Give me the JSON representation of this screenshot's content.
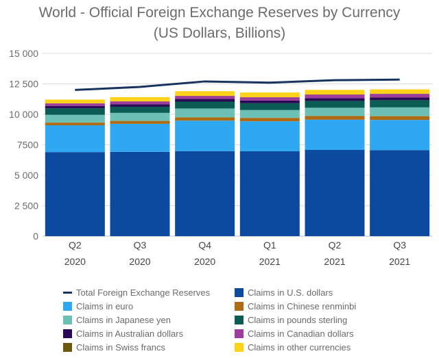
{
  "chart_data": {
    "type": "bar",
    "stacked": true,
    "title_line1": "World - Official Foreign Exchange Reserves by Currency",
    "title_line2": "(US Dollars, Billions)",
    "xlabel": "",
    "ylabel": "",
    "ylim": [
      0,
      15000
    ],
    "yticks": [
      0,
      2500,
      5000,
      7500,
      10000,
      12500,
      15000
    ],
    "ytick_labels": [
      "0",
      "2 500",
      "5 000",
      "7500",
      "10 000",
      "12 500",
      "15 000"
    ],
    "categories": [
      {
        "quarter": "Q2",
        "year": "2020"
      },
      {
        "quarter": "Q3",
        "year": "2020"
      },
      {
        "quarter": "Q4",
        "year": "2020"
      },
      {
        "quarter": "Q1",
        "year": "2021"
      },
      {
        "quarter": "Q2",
        "year": "2021"
      },
      {
        "quarter": "Q3",
        "year": "2021"
      }
    ],
    "series": [
      {
        "name": "Claims in U.S. dollars",
        "color": "#0b4a9e",
        "values": [
          6900,
          6920,
          6980,
          6970,
          7080,
          7060
        ]
      },
      {
        "name": "Claims in euro",
        "color": "#2ea8f0",
        "values": [
          2200,
          2300,
          2500,
          2460,
          2480,
          2480
        ]
      },
      {
        "name": "Claims in Chinese renminbi",
        "color": "#b06a14",
        "values": [
          220,
          240,
          270,
          280,
          300,
          310
        ]
      },
      {
        "name": "Claims in Japanese yen",
        "color": "#6cc0b4",
        "values": [
          640,
          660,
          730,
          640,
          680,
          720
        ]
      },
      {
        "name": "Claims in pounds sterling",
        "color": "#0b5c54",
        "values": [
          530,
          500,
          560,
          560,
          560,
          590
        ]
      },
      {
        "name": "Claims in Australian dollars",
        "color": "#2a0a55",
        "values": [
          200,
          210,
          220,
          220,
          230,
          230
        ]
      },
      {
        "name": "Claims in Canadian dollars",
        "color": "#a03c9e",
        "values": [
          200,
          220,
          240,
          260,
          280,
          280
        ]
      },
      {
        "name": "Claims in Swiss francs",
        "color": "#6b5a0e",
        "values": [
          20,
          20,
          20,
          20,
          20,
          20
        ]
      },
      {
        "name": "Claims in other currencies",
        "color": "#ffd21a",
        "values": [
          300,
          340,
          380,
          380,
          380,
          360
        ]
      }
    ],
    "line_series": {
      "name": "Total Foreign Exchange Reserves",
      "color": "#17335e",
      "values": [
        12000,
        12250,
        12700,
        12600,
        12800,
        12850
      ]
    },
    "legend_placement": "bottom"
  }
}
